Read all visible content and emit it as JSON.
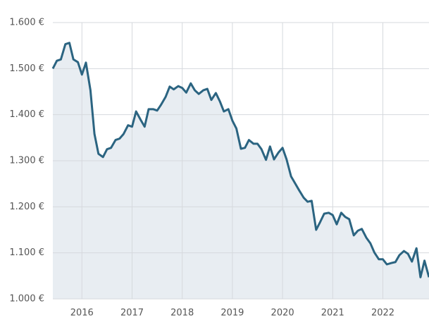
{
  "chart_data": {
    "type": "area",
    "x": [
      2015.42,
      2015.5,
      2015.58,
      2015.67,
      2015.75,
      2015.83,
      2015.92,
      2016.0,
      2016.08,
      2016.17,
      2016.25,
      2016.33,
      2016.42,
      2016.5,
      2016.58,
      2016.67,
      2016.75,
      2016.83,
      2016.92,
      2017.0,
      2017.08,
      2017.17,
      2017.25,
      2017.33,
      2017.42,
      2017.5,
      2017.58,
      2017.67,
      2017.75,
      2017.83,
      2017.92,
      2018.0,
      2018.08,
      2018.17,
      2018.25,
      2018.33,
      2018.42,
      2018.5,
      2018.58,
      2018.67,
      2018.75,
      2018.83,
      2018.92,
      2019.0,
      2019.08,
      2019.17,
      2019.25,
      2019.33,
      2019.42,
      2019.5,
      2019.58,
      2019.67,
      2019.75,
      2019.83,
      2019.92,
      2020.0,
      2020.08,
      2020.17,
      2020.25,
      2020.33,
      2020.42,
      2020.5,
      2020.58,
      2020.67,
      2020.75,
      2020.83,
      2020.92,
      2021.0,
      2021.08,
      2021.17,
      2021.25,
      2021.33,
      2021.42,
      2021.5,
      2021.58,
      2021.67,
      2021.75,
      2021.83,
      2021.92,
      2022.0,
      2022.08,
      2022.17,
      2022.25,
      2022.33,
      2022.42,
      2022.5,
      2022.58,
      2022.67,
      2022.75,
      2022.83,
      2022.92
    ],
    "values": [
      1500,
      1517,
      1520,
      1553,
      1556,
      1520,
      1514,
      1487,
      1513,
      1453,
      1358,
      1315,
      1308,
      1325,
      1328,
      1345,
      1348,
      1358,
      1377,
      1374,
      1407,
      1389,
      1374,
      1412,
      1412,
      1409,
      1422,
      1439,
      1461,
      1455,
      1462,
      1458,
      1448,
      1468,
      1453,
      1445,
      1453,
      1456,
      1432,
      1447,
      1429,
      1407,
      1412,
      1387,
      1370,
      1326,
      1328,
      1345,
      1337,
      1337,
      1325,
      1302,
      1331,
      1303,
      1318,
      1328,
      1303,
      1266,
      1251,
      1236,
      1220,
      1211,
      1213,
      1150,
      1167,
      1185,
      1187,
      1182,
      1162,
      1187,
      1178,
      1173,
      1138,
      1148,
      1152,
      1133,
      1121,
      1101,
      1086,
      1086,
      1075,
      1078,
      1080,
      1095,
      1104,
      1098,
      1081,
      1110,
      1047,
      1083,
      1047
    ],
    "color": "#2b6481",
    "fill_color": "#e8edf2",
    "xlim": [
      2015.42,
      2022.92
    ],
    "ylim": [
      1000,
      1600
    ],
    "xticks": [
      2016,
      2017,
      2018,
      2019,
      2020,
      2021,
      2022
    ],
    "yticks": [
      {
        "value": 1000,
        "label": "1.000 €"
      },
      {
        "value": 1100,
        "label": "1.100 €"
      },
      {
        "value": 1200,
        "label": "1.200 €"
      },
      {
        "value": 1300,
        "label": "1.300 €"
      },
      {
        "value": 1400,
        "label": "1.400 €"
      },
      {
        "value": 1500,
        "label": "1.500 €"
      },
      {
        "value": 1600,
        "label": "1.600 €"
      }
    ],
    "grid": true
  }
}
